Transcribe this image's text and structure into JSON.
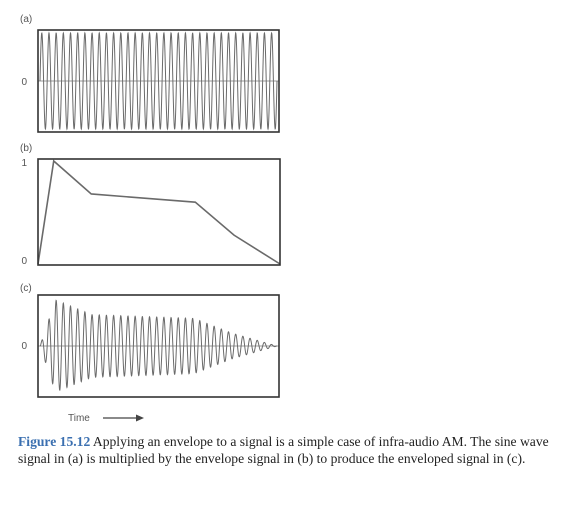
{
  "chart_data": [
    {
      "type": "line",
      "panel_label": "(a)",
      "y_tick_labels": [
        "0"
      ],
      "series": [
        {
          "kind": "sine",
          "amplitude": 1.0,
          "cycles": 33
        }
      ],
      "ylim": [
        -1,
        1
      ],
      "grid": false
    },
    {
      "type": "line",
      "panel_label": "(b)",
      "y_tick_labels": [
        "1",
        "0"
      ],
      "series": [
        {
          "x": [
            0,
            0.065,
            0.22,
            0.65,
            0.81,
            1.0
          ],
          "y": [
            0,
            1.0,
            0.68,
            0.6,
            0.28,
            0
          ]
        }
      ],
      "ylim": [
        0,
        1
      ],
      "grid": false
    },
    {
      "type": "line",
      "panel_label": "(c)",
      "y_tick_labels": [
        "0"
      ],
      "series": [
        {
          "kind": "sine-times-envelope",
          "cycles": 33
        }
      ],
      "ylim": [
        -1,
        1
      ],
      "grid": false
    }
  ],
  "xlabel": "Time",
  "caption": {
    "label": "Figure 15.12",
    "text": "  Applying an envelope to a signal is a simple case of infra-audio AM. The sine wave signal in (a) is multiplied by the envelope signal in (b) to produce the enveloped signal in (c)."
  }
}
